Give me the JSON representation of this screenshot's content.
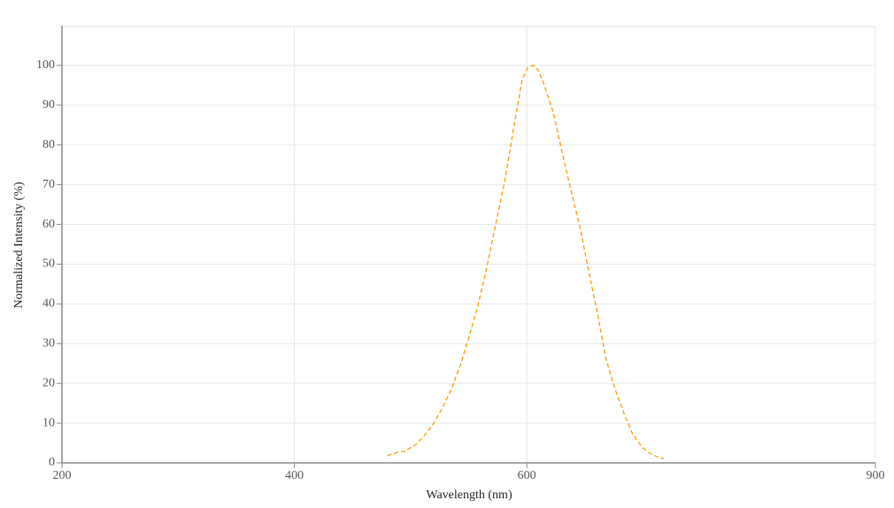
{
  "chart_data": {
    "type": "line",
    "x_label": "Wavelength (nm)",
    "y_label": "Normalized Intensity (%)",
    "x": [
      480,
      489,
      495,
      505,
      512,
      520,
      527,
      535,
      543,
      550,
      558,
      566,
      573,
      581,
      588,
      596,
      601,
      606,
      610,
      615,
      623,
      630,
      638,
      646,
      653,
      661,
      668,
      676,
      684,
      691,
      699,
      706,
      714,
      718
    ],
    "values": [
      1.8,
      2.7,
      2.9,
      4.7,
      6.9,
      10,
      13.6,
      18.5,
      24.7,
      31.4,
      39.6,
      49.7,
      59.7,
      70.8,
      83,
      96.4,
      99.6,
      100,
      98.7,
      95.1,
      88,
      78.6,
      68.6,
      59,
      48.6,
      37.4,
      26.3,
      18.5,
      12.2,
      7.3,
      4,
      2.4,
      1.3,
      1.1
    ],
    "color": "#ff9900",
    "dashed": true,
    "xlim": [
      200,
      900
    ],
    "xticks": [
      200,
      400,
      600,
      900
    ],
    "ylim": [
      0,
      110
    ],
    "yticks": [
      0,
      10,
      20,
      30,
      40,
      50,
      60,
      70,
      80,
      90,
      100
    ],
    "grid": true
  }
}
